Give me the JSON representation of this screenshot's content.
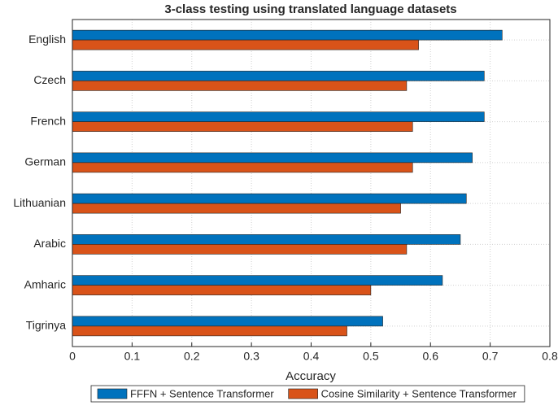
{
  "chart_data": {
    "type": "barh",
    "title": "3-class testing using translated language datasets",
    "xlabel": "Accuracy",
    "categories": [
      "English",
      "Czech",
      "French",
      "German",
      "Lithuanian",
      "Arabic",
      "Amharic",
      "Tigrinya"
    ],
    "series": [
      {
        "name": "FFFN + Sentence Transformer",
        "color": "#0072bd",
        "values": [
          0.72,
          0.69,
          0.69,
          0.67,
          0.66,
          0.65,
          0.62,
          0.52
        ]
      },
      {
        "name": "Cosine Similarity + Sentence Transformer",
        "color": "#d95319",
        "values": [
          0.58,
          0.56,
          0.57,
          0.57,
          0.55,
          0.56,
          0.5,
          0.46
        ]
      }
    ],
    "xlim": [
      0,
      0.8
    ],
    "xticks": [
      0,
      0.1,
      0.2,
      0.3,
      0.4,
      0.5,
      0.6,
      0.7,
      0.8
    ],
    "grid": true,
    "legend": "bottom"
  }
}
